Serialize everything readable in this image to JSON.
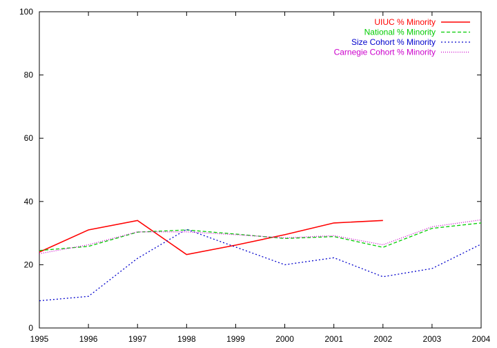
{
  "chart_data": {
    "type": "line",
    "title": "",
    "xlabel": "",
    "ylabel": "",
    "x": [
      1995,
      1996,
      1997,
      1998,
      1999,
      2000,
      2001,
      2002,
      2003,
      2004
    ],
    "xlim": [
      1995,
      2004
    ],
    "ylim": [
      0,
      100
    ],
    "x_ticks": [
      "1995",
      "1996",
      "1997",
      "1998",
      "1999",
      "2000",
      "2001",
      "2002",
      "2003",
      "2004"
    ],
    "y_ticks": [
      "0",
      "20",
      "40",
      "60",
      "80",
      "100"
    ],
    "grid": false,
    "legend_position": "top-right",
    "series": [
      {
        "name": "UIUC % Minority",
        "color": "#ff0000",
        "style": "solid",
        "values": [
          24.0,
          31.0,
          34.0,
          23.2,
          26.2,
          29.5,
          33.2,
          34.0,
          null,
          null
        ]
      },
      {
        "name": "National % Minority",
        "color": "#00cc00",
        "style": "dashed",
        "values": [
          24.5,
          25.8,
          30.3,
          31.0,
          29.7,
          28.3,
          28.9,
          25.5,
          31.5,
          33.2
        ]
      },
      {
        "name": "Size Cohort % Minority",
        "color": "#0000cc",
        "style": "dotted",
        "values": [
          8.6,
          10.0,
          22.0,
          31.2,
          25.6,
          20.0,
          22.2,
          16.2,
          18.8,
          26.5
        ]
      },
      {
        "name": "Carnegie Cohort % Minority",
        "color": "#cc00cc",
        "style": "fine-dotted",
        "values": [
          23.5,
          26.3,
          30.4,
          30.4,
          29.5,
          28.5,
          29.2,
          26.3,
          32.0,
          34.2
        ]
      }
    ]
  }
}
